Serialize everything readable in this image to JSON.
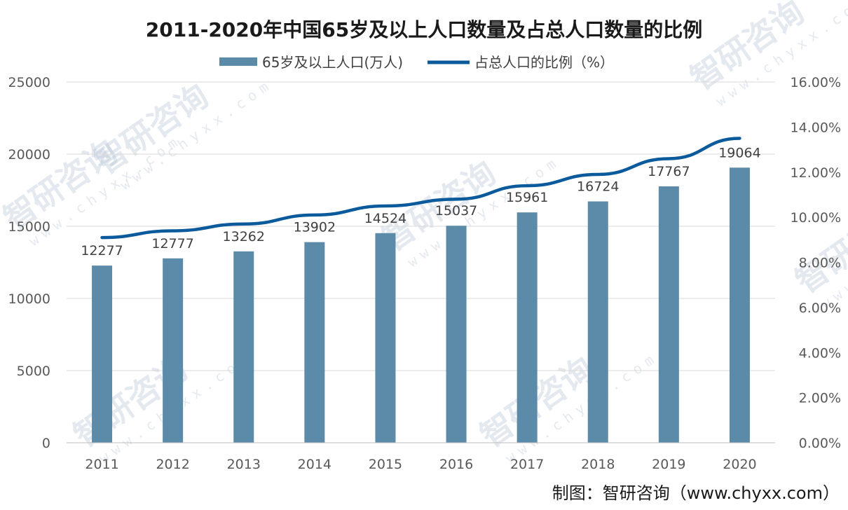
{
  "chart_data": {
    "type": "bar+line",
    "title": "2011-2020年中国65岁及以上人口数量及占总人口数量的比例",
    "categories": [
      "2011",
      "2012",
      "2013",
      "2014",
      "2015",
      "2016",
      "2017",
      "2018",
      "2019",
      "2020"
    ],
    "series": [
      {
        "name": "65岁及以上人口(万人)",
        "type": "bar",
        "axis": "left",
        "values": [
          12277,
          12777,
          13262,
          13902,
          14524,
          15037,
          15961,
          16724,
          17767,
          19064
        ],
        "color": "#5b8ba8"
      },
      {
        "name": "占总人口的比例（%）",
        "type": "line",
        "axis": "right",
        "values": [
          9.1,
          9.4,
          9.7,
          10.1,
          10.5,
          10.8,
          11.4,
          11.9,
          12.6,
          13.5
        ],
        "color": "#0b5a9c"
      }
    ],
    "y_left": {
      "min": 0,
      "max": 25000,
      "ticks": [
        "0",
        "5000",
        "10000",
        "15000",
        "20000",
        "25000"
      ]
    },
    "y_right": {
      "min": 0,
      "max": 16,
      "ticks": [
        "0.00%",
        "2.00%",
        "4.00%",
        "6.00%",
        "8.00%",
        "10.00%",
        "12.00%",
        "14.00%",
        "16.00%"
      ]
    },
    "grid": true,
    "legend_position": "top-center"
  },
  "source": "制图：智研咨询（www.chyxx.com）",
  "watermark": {
    "brand": "智研咨询",
    "url": "www.chyxx.com"
  }
}
